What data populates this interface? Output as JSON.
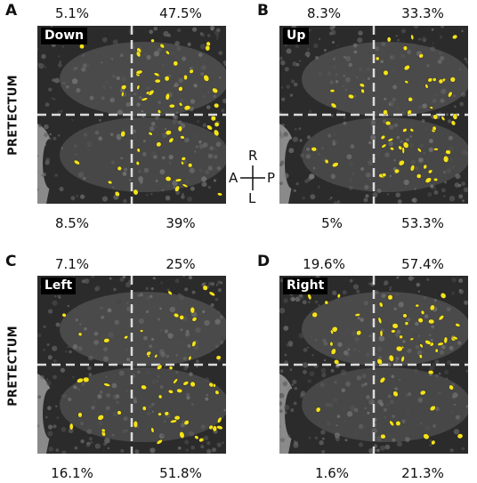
{
  "pretectum_label": "PRETECTUM",
  "compass": {
    "top": "R",
    "left": "A",
    "right": "P",
    "bottom": "L"
  },
  "colors": {
    "cells": "#f5e21a",
    "background": "#2a2a2a",
    "crosshair": "#dcdcdc"
  },
  "panels": [
    {
      "letter": "A",
      "direction": "Down",
      "top_left": "5.1%",
      "top_right": "47.5%",
      "bottom_left": "8.5%",
      "bottom_right": "39%"
    },
    {
      "letter": "B",
      "direction": "Up",
      "top_left": "8.3%",
      "top_right": "33.3%",
      "bottom_left": "5%",
      "bottom_right": "53.3%"
    },
    {
      "letter": "C",
      "direction": "Left",
      "top_left": "7.1%",
      "top_right": "25%",
      "bottom_left": "16.1%",
      "bottom_right": "51.8%"
    },
    {
      "letter": "D",
      "direction": "Right",
      "top_left": "19.6%",
      "top_right": "57.4%",
      "bottom_left": "1.6%",
      "bottom_right": "21.3%"
    }
  ]
}
